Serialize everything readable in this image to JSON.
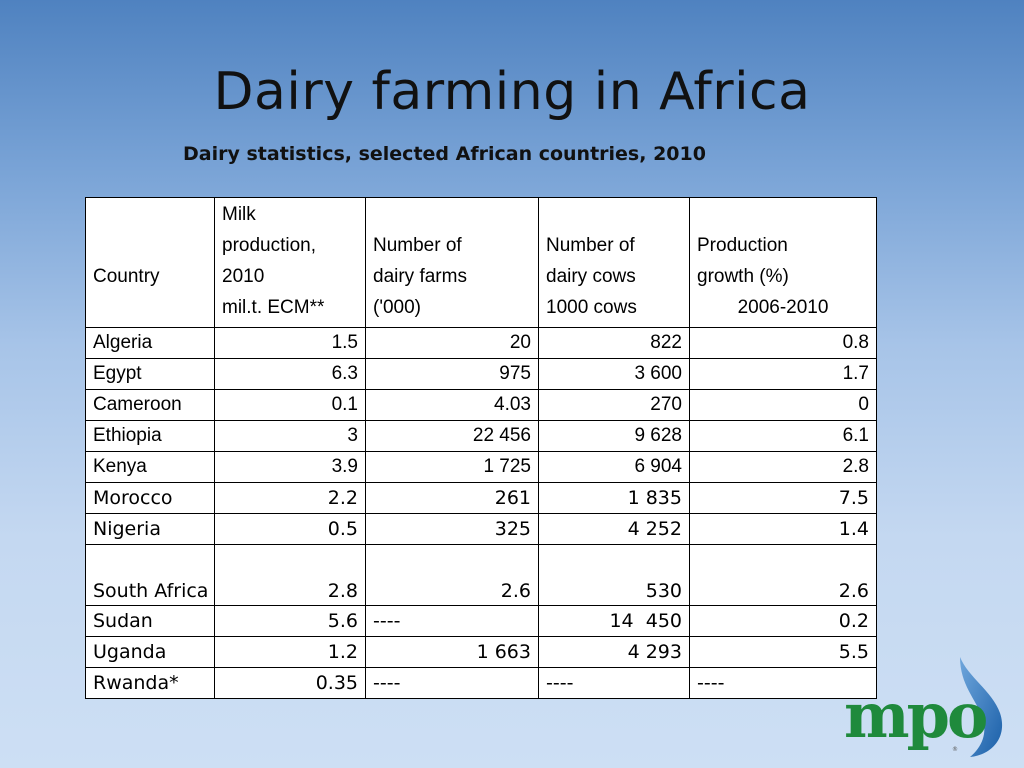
{
  "title": "Dairy farming in Africa",
  "subtitle": "Dairy statistics, selected African countries, 2010",
  "table": {
    "headers": {
      "country": "Country",
      "milk_l1": "Milk",
      "milk_l2": "production,",
      "milk_l3": "2010",
      "milk_l4": "mil.t. ECM**",
      "farms_l1": "Number of",
      "farms_l2": "dairy farms",
      "farms_l3": "('000)",
      "cows_l1": "Number of",
      "cows_l2": "dairy cows",
      "cows_l3": "1000 cows",
      "growth_l1": "Production",
      "growth_l2": "growth (%)",
      "growth_l3": "2006-2010"
    },
    "rows": [
      {
        "country": "Algeria",
        "milk": "1.5",
        "farms": "20",
        "cows": "822",
        "growth": "0.8"
      },
      {
        "country": "Egypt",
        "milk": "6.3",
        "farms": "975",
        "cows": "3 600",
        "growth": "1.7"
      },
      {
        "country": "Cameroon",
        "milk": "0.1",
        "farms": "4.03",
        "cows": "270",
        "growth": "0"
      },
      {
        "country": "Ethiopia",
        "milk": "3",
        "farms": "22 456",
        "cows": "9 628",
        "growth": "6.1"
      },
      {
        "country": "Kenya",
        "milk": "3.9",
        "farms": "1 725",
        "cows": "6 904",
        "growth": "2.8"
      },
      {
        "country": "Morocco",
        "milk": "2.2",
        "farms": "261",
        "cows": "1 835",
        "growth": "7.5"
      },
      {
        "country": "Nigeria",
        "milk": "0.5",
        "farms": "325",
        "cows": "4 252",
        "growth": "1.4"
      },
      {
        "country": "South Africa",
        "milk": "2.8",
        "farms": "2.6",
        "cows": "530",
        "growth": "2.6"
      },
      {
        "country": "Sudan",
        "milk": "5.6",
        "farms": "----",
        "cows": "14  450",
        "growth": "0.2"
      },
      {
        "country": "Uganda",
        "milk": "1.2",
        "farms": "1 663",
        "cows": "4 293",
        "growth": "5.5"
      },
      {
        "country": "Rwanda*",
        "milk": "0.35",
        "farms": "----",
        "cows": "----",
        "growth": "----"
      }
    ]
  },
  "logo": {
    "text": "mpo",
    "small": "®",
    "color_green": "#1f8a3c",
    "color_blue": "#1a5fa8"
  }
}
